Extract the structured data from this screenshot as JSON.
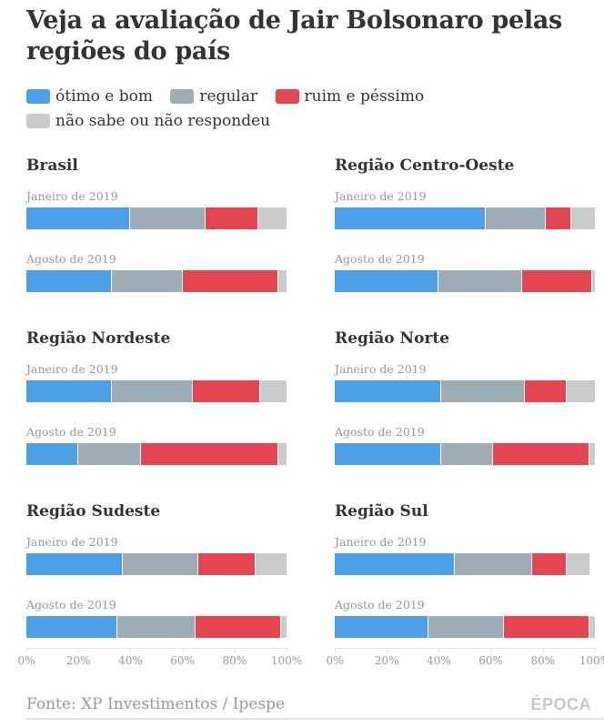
{
  "chart_data": {
    "type": "bar",
    "stacked": true,
    "orientation": "horizontal",
    "title": "Veja a avaliação de Jair Bolsonaro pelas regiões do país",
    "legend": [
      {
        "name": "ótimo e bom",
        "color": "#4da0e8"
      },
      {
        "name": "regular",
        "color": "#9eadb5"
      },
      {
        "name": "ruim e péssimo",
        "color": "#e34650"
      },
      {
        "name": "não sabe ou não respondeu",
        "color": "#cbcbcb"
      }
    ],
    "xlim": [
      0,
      100
    ],
    "xticks": [
      "0%",
      "20%",
      "40%",
      "60%",
      "80%",
      "100%"
    ],
    "panels": [
      {
        "title": "Brasil",
        "rows": [
          {
            "label": "Janeiro de 2019",
            "values": [
              40,
              29,
              20,
              11
            ]
          },
          {
            "label": "Agosto de 2019",
            "values": [
              33,
              27,
              37,
              3
            ]
          }
        ]
      },
      {
        "title": "Região Centro-Oeste",
        "rows": [
          {
            "label": "Janeiro de 2019",
            "values": [
              58,
              23,
              10,
              9
            ]
          },
          {
            "label": "Agosto de 2019",
            "values": [
              40,
              32,
              27,
              1
            ]
          }
        ]
      },
      {
        "title": "Região Nordeste",
        "rows": [
          {
            "label": "Janeiro de 2019",
            "values": [
              33,
              31,
              26,
              10
            ]
          },
          {
            "label": "Agosto de 2019",
            "values": [
              20,
              24,
              53,
              3
            ]
          }
        ]
      },
      {
        "title": "Região Norte",
        "rows": [
          {
            "label": "Janeiro de 2019",
            "values": [
              41,
              32,
              16,
              11
            ]
          },
          {
            "label": "Agosto de 2019",
            "values": [
              41,
              20,
              37,
              2
            ]
          }
        ]
      },
      {
        "title": "Região Sudeste",
        "rows": [
          {
            "label": "Janeiro de 2019",
            "values": [
              37,
              29,
              22,
              12
            ]
          },
          {
            "label": "Agosto de 2019",
            "values": [
              35,
              30,
              33,
              2
            ]
          }
        ]
      },
      {
        "title": "Região Sul",
        "rows": [
          {
            "label": "Janeiro de 2019",
            "values": [
              46,
              30,
              13,
              9
            ]
          },
          {
            "label": "Agosto de 2019",
            "values": [
              36,
              29,
              33,
              2
            ]
          }
        ]
      }
    ]
  },
  "footer": {
    "source": "Fonte: XP Investimentos / Ipespe",
    "logo": "ÉPOCA"
  }
}
